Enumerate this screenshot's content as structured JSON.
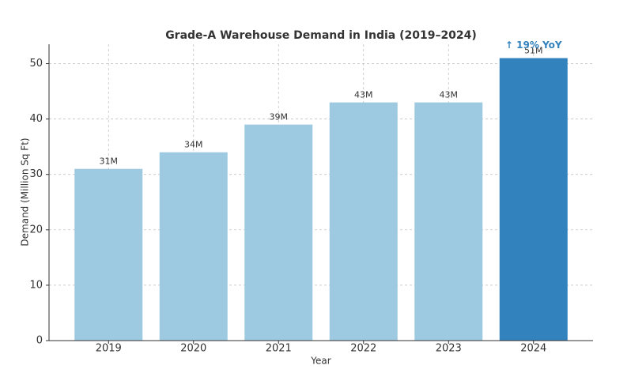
{
  "chart_data": {
    "type": "bar",
    "title": "Grade-A Warehouse Demand in India (2019–2024)",
    "x_label": "Year",
    "y_label": "Demand (Million Sq Ft)",
    "categories": [
      "2019",
      "2020",
      "2021",
      "2022",
      "2023",
      "2024"
    ],
    "values": [
      31,
      34,
      39,
      43,
      43,
      51
    ],
    "value_labels": [
      "31M",
      "34M",
      "39M",
      "43M",
      "43M",
      "51M"
    ],
    "colors": [
      "#9ecae1",
      "#9ecae1",
      "#9ecae1",
      "#9ecae1",
      "#9ecae1",
      "#3182bd"
    ],
    "annotation": "↑ 19% YoY",
    "annotation_color": "#3182bd",
    "ylim": [
      0,
      53.5
    ],
    "yticks": [
      0,
      10,
      20,
      30,
      40,
      50
    ],
    "grid": true
  }
}
